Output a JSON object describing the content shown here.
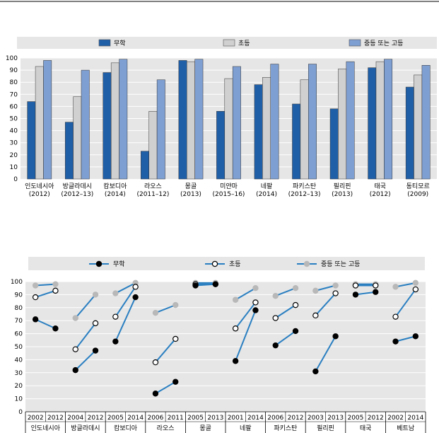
{
  "chart_data": [
    {
      "type": "bar",
      "categories": [
        "인도네시아",
        "방글라데시",
        "캄보디아",
        "라오스",
        "몽골",
        "미얀마",
        "네팔",
        "파키스탄",
        "필리핀",
        "태국",
        "동티모르"
      ],
      "category_years": [
        "(2012)",
        "(2012–13)",
        "(2014)",
        "(2011–12)",
        "(2013)",
        "(2015–16)",
        "(2014)",
        "(2012–13)",
        "(2013)",
        "(2012)",
        "(2009)"
      ],
      "series": [
        {
          "name": "무학",
          "color": "#1f5fa8",
          "values": [
            64,
            47,
            88,
            23,
            98,
            56,
            78,
            62,
            58,
            92,
            76
          ]
        },
        {
          "name": "초등",
          "color": "#d0d0d0",
          "values": [
            93,
            68,
            96,
            56,
            97,
            83,
            84,
            82,
            91,
            97,
            86
          ]
        },
        {
          "name": "중등 또는 고등",
          "color": "#7e9fd2",
          "values": [
            98,
            90,
            99,
            82,
            99,
            93,
            95,
            95,
            97,
            99,
            94
          ]
        }
      ],
      "yticks": [
        0,
        10,
        20,
        30,
        40,
        50,
        60,
        70,
        80,
        90,
        100
      ],
      "ylim": [
        0,
        100
      ],
      "legend_position": "top"
    },
    {
      "type": "line",
      "countries": [
        {
          "name": "인도네시아",
          "years": [
            "2002",
            "2012"
          ],
          "none": [
            71,
            64
          ],
          "primary": [
            88,
            93
          ],
          "secondary": [
            97,
            98
          ]
        },
        {
          "name": "방글라데시",
          "years": [
            "2004",
            "2012"
          ],
          "none": [
            32,
            47
          ],
          "primary": [
            48,
            68
          ],
          "secondary": [
            72,
            90
          ]
        },
        {
          "name": "캄보디아",
          "years": [
            "2005",
            "2014"
          ],
          "none": [
            54,
            88
          ],
          "primary": [
            73,
            96
          ],
          "secondary": [
            91,
            99
          ]
        },
        {
          "name": "라오스",
          "years": [
            "2006",
            "2011"
          ],
          "none": [
            14,
            23
          ],
          "primary": [
            38,
            56
          ],
          "secondary": [
            76,
            82
          ]
        },
        {
          "name": "몽골",
          "years": [
            "2005",
            "2013"
          ],
          "none": [
            97,
            98
          ],
          "primary": [
            98,
            98
          ],
          "secondary": [
            99,
            99
          ]
        },
        {
          "name": "네팔",
          "years": [
            "2001",
            "2014"
          ],
          "none": [
            39,
            78
          ],
          "primary": [
            64,
            84
          ],
          "secondary": [
            86,
            95
          ]
        },
        {
          "name": "파키스탄",
          "years": [
            "2006",
            "2012"
          ],
          "none": [
            51,
            62
          ],
          "primary": [
            72,
            82
          ],
          "secondary": [
            89,
            95
          ]
        },
        {
          "name": "필리핀",
          "years": [
            "2003",
            "2013"
          ],
          "none": [
            31,
            58
          ],
          "primary": [
            74,
            91
          ],
          "secondary": [
            93,
            97
          ]
        },
        {
          "name": "태국",
          "years": [
            "2005",
            "2012"
          ],
          "none": [
            90,
            92
          ],
          "primary": [
            97,
            97
          ],
          "secondary": [
            98,
            98
          ]
        },
        {
          "name": "베트남",
          "years": [
            "2002",
            "2014"
          ],
          "none": [
            54,
            58
          ],
          "primary": [
            73,
            94
          ],
          "secondary": [
            96,
            99
          ]
        }
      ],
      "legend": [
        {
          "key": "none",
          "name": "무학",
          "color": "#000000"
        },
        {
          "key": "primary",
          "name": "초등",
          "color": "#ffffff"
        },
        {
          "key": "secondary",
          "name": "중등 또는 고등",
          "color": "#b8b8b8"
        }
      ],
      "line_color": "#2a7fc1",
      "yticks": [
        0,
        10,
        20,
        30,
        40,
        50,
        60,
        70,
        80,
        90,
        100
      ],
      "ylim": [
        0,
        100
      ],
      "legend_position": "top"
    }
  ]
}
